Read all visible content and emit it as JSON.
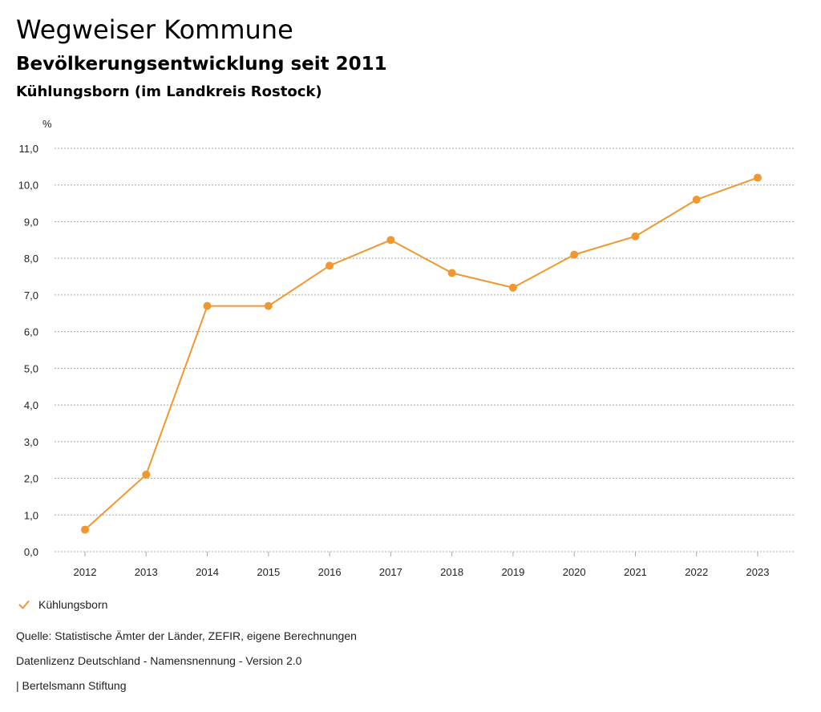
{
  "header": {
    "title": "Wegweiser Kommune",
    "subtitle": "Bevölkerungsentwicklung seit 2011",
    "region": "Kühlungsborn (im Landkreis Rostock)"
  },
  "chart_data": {
    "type": "line",
    "ylabel": "%",
    "xlabel": "",
    "ylim": [
      0,
      11
    ],
    "yticks": [
      "0,0",
      "1,0",
      "2,0",
      "3,0",
      "4,0",
      "5,0",
      "6,0",
      "7,0",
      "8,0",
      "9,0",
      "10,0",
      "11,0"
    ],
    "grid": true,
    "categories": [
      "2012",
      "2013",
      "2014",
      "2015",
      "2016",
      "2017",
      "2018",
      "2019",
      "2020",
      "2021",
      "2022",
      "2023"
    ],
    "series": [
      {
        "name": "Kühlungsborn",
        "color": "#F0982F",
        "values": [
          0.6,
          2.1,
          6.7,
          6.7,
          7.8,
          8.5,
          7.6,
          7.2,
          8.1,
          8.6,
          9.6,
          10.2
        ]
      }
    ],
    "legend_position": "bottom-left"
  },
  "legend": {
    "label": "Kühlungsborn",
    "icon": "checkmark-icon"
  },
  "footer": {
    "source": "Quelle: Statistische Ämter der Länder, ZEFIR, eigene Berechnungen",
    "license": "Datenlizenz Deutschland - Namensnennung - Version 2.0",
    "publisher": "| Bertelsmann Stiftung"
  }
}
